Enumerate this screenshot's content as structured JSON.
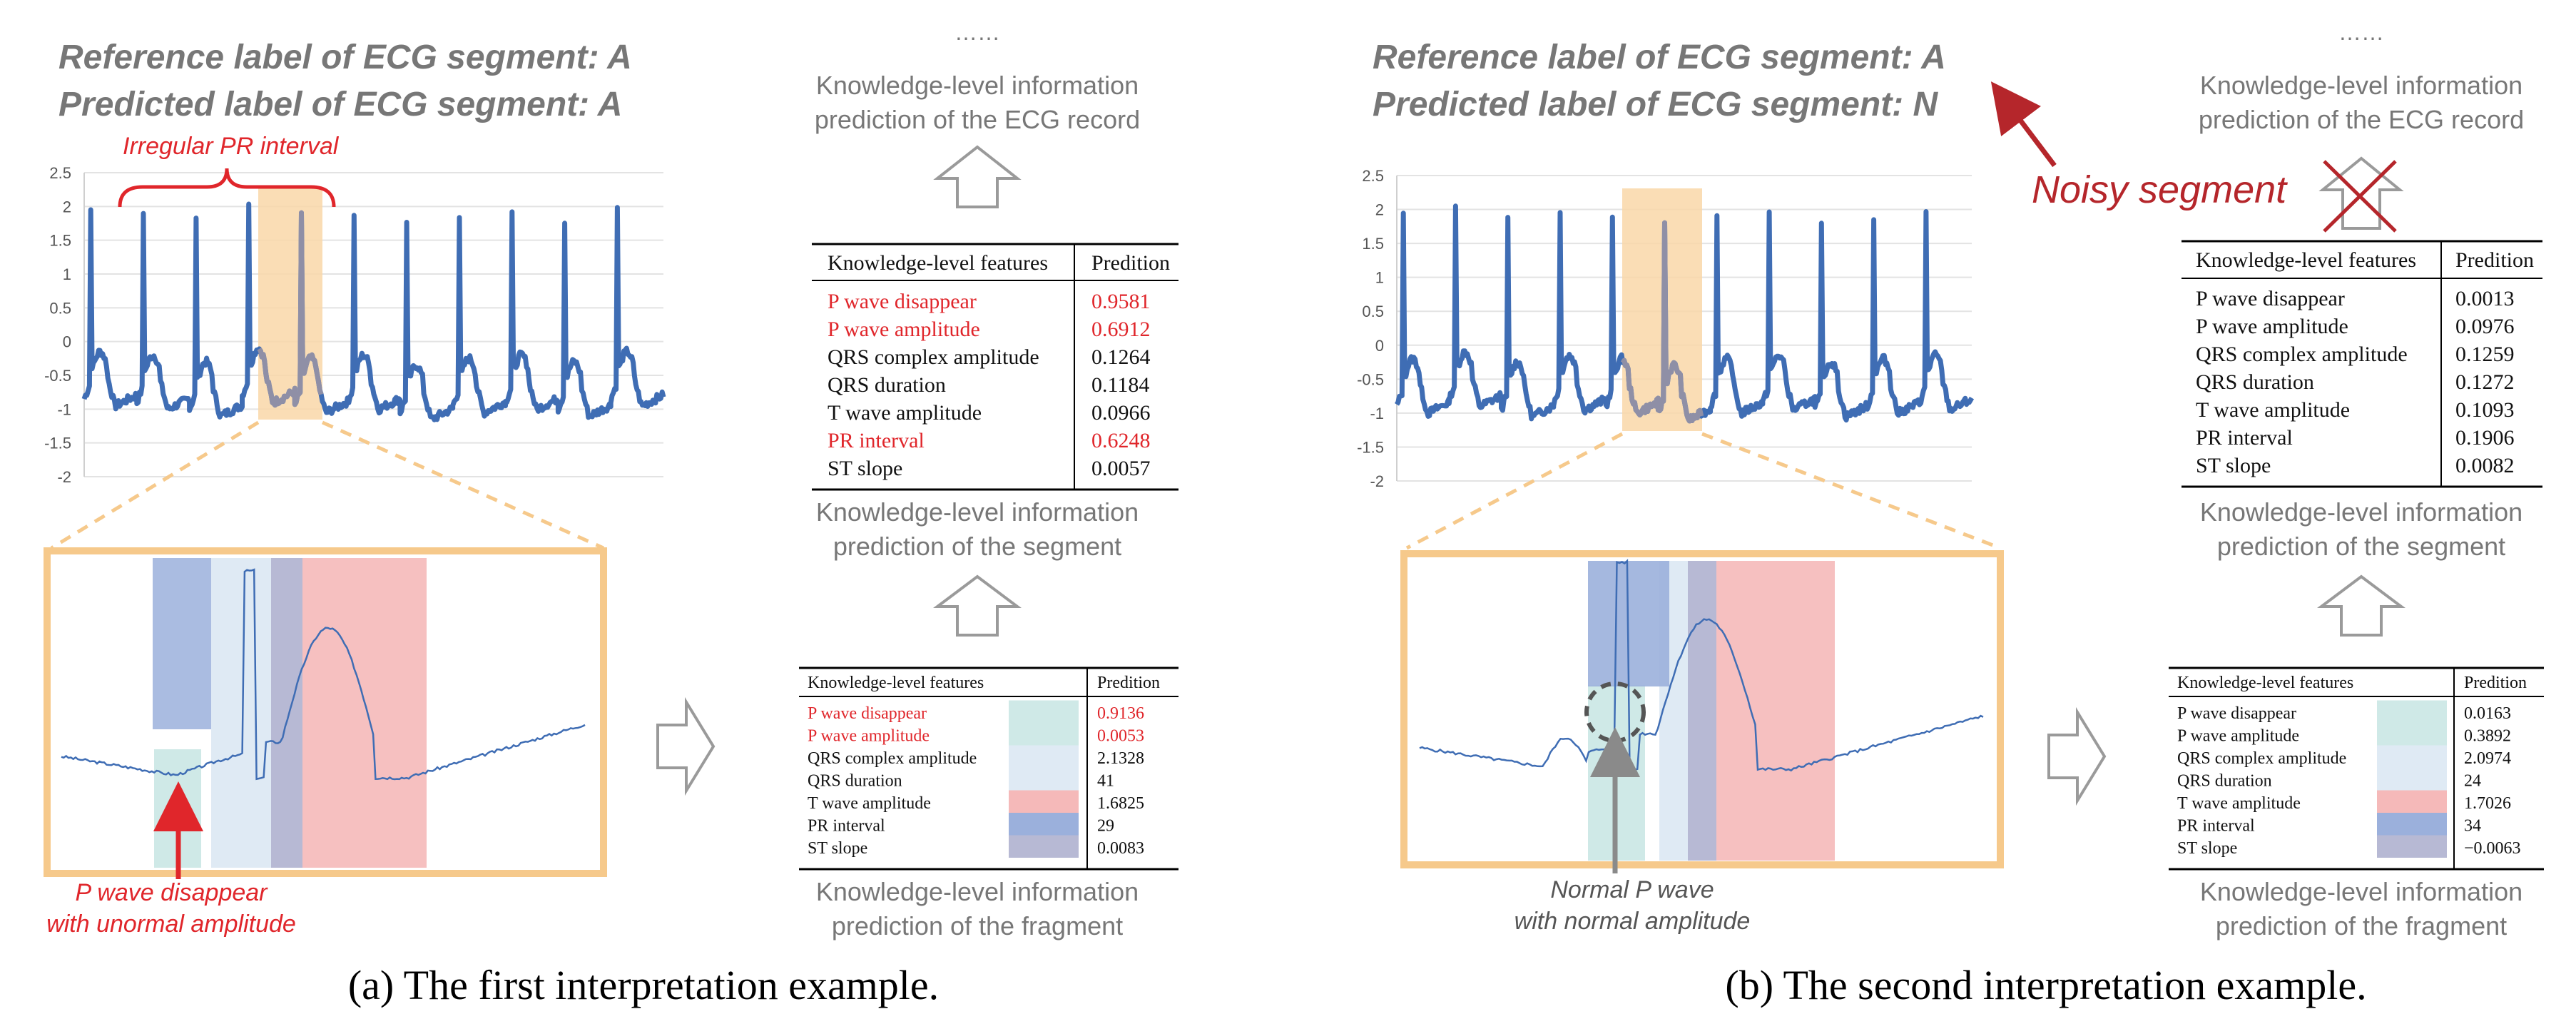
{
  "colors": {
    "gray_text": "#777777",
    "ecg_blue": "#3f6db4",
    "red": "#e0262b",
    "dark_red": "#b5262b",
    "orange_box": "#f6c98b",
    "orange_fill": "#f9d7a8",
    "teal": "#cfe9e7",
    "light_blue": "#dfeaf4",
    "pink": "#f5b9b9",
    "blue": "#9bb0dc",
    "slate": "#b7b9d4"
  },
  "panel_a": {
    "reference_label": "Reference label of ECG segment: A",
    "predicted_label": "Predicted label of ECG segment:  A",
    "pr_annotation": "Irregular PR interval",
    "pwave_note_line1": "P wave disappear",
    "pwave_note_line2": "with unormal amplitude",
    "yaxis_ticks": [
      "2.5",
      "2",
      "1.5",
      "1",
      "0.5",
      "0",
      "-0.5",
      "-1",
      "-1.5",
      "-2"
    ],
    "dots": "……",
    "record_prediction_line1": "Knowledge-level information",
    "record_prediction_line2": "prediction of the  ECG record",
    "segment_table": {
      "header_feature": "Knowledge-level features",
      "header_value": "Predition",
      "rows": [
        {
          "feature": "P wave disappear",
          "value": "0.9581",
          "highlight": true
        },
        {
          "feature": "P wave amplitude",
          "value": "0.6912",
          "highlight": true
        },
        {
          "feature": "QRS complex amplitude",
          "value": "0.1264",
          "highlight": false
        },
        {
          "feature": "QRS duration",
          "value": "0.1184",
          "highlight": false
        },
        {
          "feature": "T wave amplitude",
          "value": "0.0966",
          "highlight": false
        },
        {
          "feature": "PR interval",
          "value": "0.6248",
          "highlight": true
        },
        {
          "feature": "ST slope",
          "value": "0.0057",
          "highlight": false
        }
      ]
    },
    "segment_prediction_line1": "Knowledge-level information",
    "segment_prediction_line2": "prediction of the segment",
    "fragment_table": {
      "header_feature": "Knowledge-level features",
      "header_value": "Predition",
      "rows": [
        {
          "feature": "P wave disappear",
          "value": "0.9136",
          "highlight": true,
          "swatch": "teal"
        },
        {
          "feature": "P wave amplitude",
          "value": "0.0053",
          "highlight": true,
          "swatch": "teal"
        },
        {
          "feature": "QRS complex amplitude",
          "value": "2.1328",
          "highlight": false,
          "swatch": "light_blue"
        },
        {
          "feature": "QRS duration",
          "value": "41",
          "highlight": false,
          "swatch": "light_blue"
        },
        {
          "feature": "T wave amplitude",
          "value": "1.6825",
          "highlight": false,
          "swatch": "pink"
        },
        {
          "feature": "PR interval",
          "value": "29",
          "highlight": false,
          "swatch": "blue"
        },
        {
          "feature": "ST slope",
          "value": "0.0083",
          "highlight": false,
          "swatch": "slate"
        }
      ]
    },
    "fragment_prediction_line1": "Knowledge-level information",
    "fragment_prediction_line2": "prediction of the fragment",
    "caption": "(a) The first interpretation example."
  },
  "panel_b": {
    "reference_label": "Reference label of ECG segment: A",
    "predicted_label": "Predicted label of ECG segment:  N",
    "noisy_label": "Noisy segment",
    "pwave_note_line1": "Normal P wave",
    "pwave_note_line2": "with normal amplitude",
    "yaxis_ticks": [
      "2.5",
      "2",
      "1.5",
      "1",
      "0.5",
      "0",
      "-0.5",
      "-1",
      "-1.5",
      "-2"
    ],
    "dots": "……",
    "record_prediction_line1": "Knowledge-level information",
    "record_prediction_line2": "prediction of the  ECG record",
    "segment_table": {
      "header_feature": "Knowledge-level features",
      "header_value": "Predition",
      "rows": [
        {
          "feature": "P wave disappear",
          "value": "0.0013",
          "highlight": false
        },
        {
          "feature": "P wave amplitude",
          "value": "0.0976",
          "highlight": false
        },
        {
          "feature": "QRS complex amplitude",
          "value": "0.1259",
          "highlight": false
        },
        {
          "feature": "QRS duration",
          "value": "0.1272",
          "highlight": false
        },
        {
          "feature": "T wave amplitude",
          "value": "0.1093",
          "highlight": false
        },
        {
          "feature": "PR interval",
          "value": "0.1906",
          "highlight": false
        },
        {
          "feature": "ST slope",
          "value": "0.0082",
          "highlight": false
        }
      ]
    },
    "segment_prediction_line1": "Knowledge-level information",
    "segment_prediction_line2": "prediction of the segment",
    "fragment_table": {
      "header_feature": "Knowledge-level features",
      "header_value": "Predition",
      "rows": [
        {
          "feature": "P wave disappear",
          "value": "0.0163",
          "highlight": false,
          "swatch": "teal"
        },
        {
          "feature": "P wave amplitude",
          "value": "0.3892",
          "highlight": false,
          "swatch": "teal"
        },
        {
          "feature": "QRS complex amplitude",
          "value": "2.0974",
          "highlight": false,
          "swatch": "light_blue"
        },
        {
          "feature": "QRS duration",
          "value": "24",
          "highlight": false,
          "swatch": "light_blue"
        },
        {
          "feature": "T wave amplitude",
          "value": "1.7026",
          "highlight": false,
          "swatch": "pink"
        },
        {
          "feature": "PR interval",
          "value": "34",
          "highlight": false,
          "swatch": "blue"
        },
        {
          "feature": "ST slope",
          "value": "−0.0063",
          "highlight": false,
          "swatch": "slate"
        }
      ]
    },
    "fragment_prediction_line1": "Knowledge-level information",
    "fragment_prediction_line2": "prediction of the fragment",
    "caption": "(b) The second interpretation example."
  }
}
